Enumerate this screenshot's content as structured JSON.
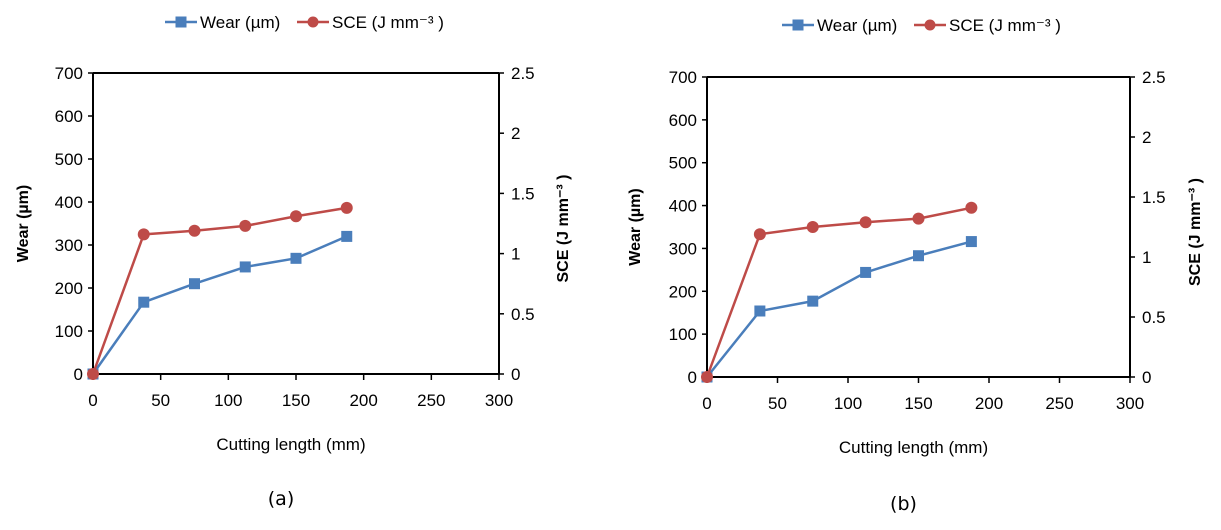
{
  "chart_data": [
    {
      "type": "line",
      "panel_label": "(a)",
      "legend": {
        "position": "top",
        "entries": [
          {
            "name": "Wear (µm)",
            "marker": "square",
            "color": "#4a7ebb"
          },
          {
            "name": "SCE (J  mm⁻³ )",
            "marker": "circle",
            "color": "#be4b48"
          }
        ]
      },
      "xlabel": "Cutting length (mm)",
      "ylabel": "Wear (µm)",
      "y2label": "SCE (J  mm⁻³ )",
      "xlim": [
        0,
        300
      ],
      "ylim": [
        0,
        700
      ],
      "y2lim": [
        0,
        2.5
      ],
      "xticks": [
        "0",
        "50",
        "100",
        "150",
        "200",
        "250",
        "300"
      ],
      "yticks": [
        "0",
        "100",
        "200",
        "300",
        "400",
        "500",
        "600",
        "700"
      ],
      "y2ticks": [
        "0",
        "0.5",
        "1",
        "1.5",
        "2",
        "2.5"
      ],
      "grid": false,
      "x": [
        0,
        37.5,
        75,
        112.5,
        150,
        187.5
      ],
      "series": [
        {
          "name": "Wear (µm)",
          "axis": "left",
          "color": "#4a7ebb",
          "marker": "square",
          "values": [
            0,
            167,
            210,
            249,
            269,
            320
          ]
        },
        {
          "name": "SCE (J  mm⁻³ )",
          "axis": "right",
          "color": "#be4b48",
          "marker": "circle",
          "values": [
            0,
            1.16,
            1.19,
            1.23,
            1.31,
            1.38
          ]
        }
      ]
    },
    {
      "type": "line",
      "panel_label": "(b)",
      "legend": {
        "position": "top",
        "entries": [
          {
            "name": "Wear (µm)",
            "marker": "square",
            "color": "#4a7ebb"
          },
          {
            "name": "SCE (J  mm⁻³ )",
            "marker": "circle",
            "color": "#be4b48"
          }
        ]
      },
      "xlabel": "Cutting length (mm)",
      "ylabel": "Wear (µm)",
      "y2label": "SCE (J  mm⁻³ )",
      "xlim": [
        0,
        300
      ],
      "ylim": [
        0,
        700
      ],
      "y2lim": [
        0,
        2.5
      ],
      "xticks": [
        "0",
        "50",
        "100",
        "150",
        "200",
        "250",
        "300"
      ],
      "yticks": [
        "0",
        "100",
        "200",
        "300",
        "400",
        "500",
        "600",
        "700"
      ],
      "y2ticks": [
        "0",
        "0.5",
        "1",
        "1.5",
        "2",
        "2.5"
      ],
      "grid": false,
      "x": [
        0,
        37.5,
        75,
        112.5,
        150,
        187.5
      ],
      "series": [
        {
          "name": "Wear (µm)",
          "axis": "left",
          "color": "#4a7ebb",
          "marker": "square",
          "values": [
            0,
            154,
            177,
            244,
            283,
            316
          ]
        },
        {
          "name": "SCE (J  mm⁻³ )",
          "axis": "right",
          "color": "#be4b48",
          "marker": "circle",
          "values": [
            0,
            1.19,
            1.25,
            1.29,
            1.32,
            1.41
          ]
        }
      ]
    }
  ]
}
